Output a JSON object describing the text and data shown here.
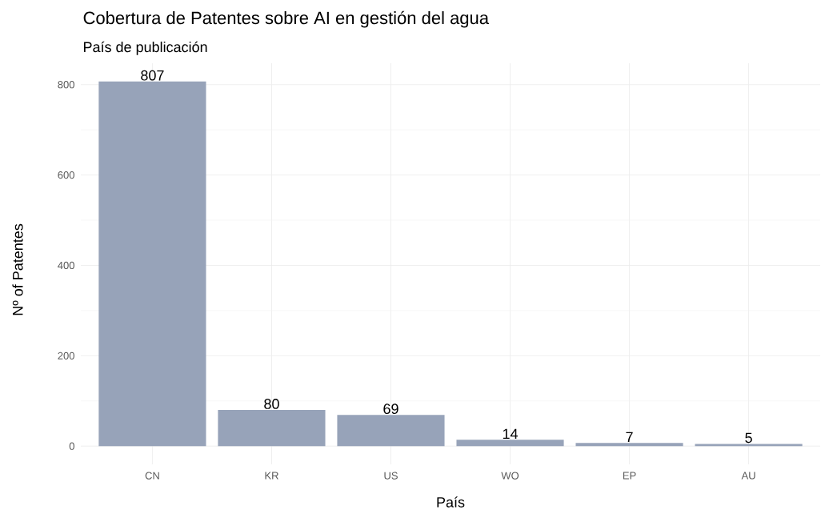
{
  "chart_data": {
    "type": "bar",
    "title": "Cobertura de Patentes sobre AI en gestión del agua",
    "subtitle": "País de publicación",
    "xlabel": "País",
    "ylabel": "Nº of Patentes",
    "categories": [
      "CN",
      "KR",
      "US",
      "WO",
      "EP",
      "AU"
    ],
    "values": [
      807,
      80,
      69,
      14,
      7,
      5
    ],
    "color": "#97a3b9",
    "ylim": [
      -40.35,
      847.35
    ],
    "yticks": [
      0,
      200,
      400,
      600,
      800
    ],
    "grid": true,
    "data_labels": true
  }
}
